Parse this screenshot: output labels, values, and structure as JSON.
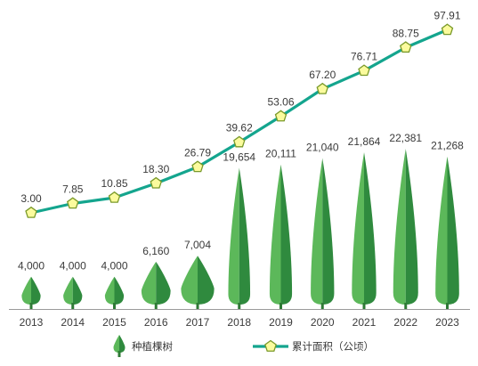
{
  "chart_data": {
    "type": "bar",
    "categories": [
      "2013",
      "2014",
      "2015",
      "2016",
      "2017",
      "2018",
      "2019",
      "2020",
      "2021",
      "2022",
      "2023"
    ],
    "series": [
      {
        "name": "种植棵树",
        "kind": "tree-bar",
        "values": [
          4000,
          4000,
          4000,
          6160,
          7004,
          19654,
          20111,
          21040,
          21864,
          22381,
          21268
        ],
        "labels": [
          "4,000",
          "4,000",
          "4,000",
          "6,160",
          "7,004",
          "19,654",
          "20,111",
          "21,040",
          "21,864",
          "22,381",
          "21,268"
        ]
      },
      {
        "name": "累计面积（公顷）",
        "kind": "line",
        "values": [
          3.0,
          7.85,
          10.85,
          18.3,
          26.79,
          39.62,
          53.06,
          67.2,
          76.71,
          88.75,
          97.91
        ],
        "labels": [
          "3.00",
          "7.85",
          "10.85",
          "18.30",
          "26.79",
          "39.62",
          "53.06",
          "67.20",
          "76.71",
          "88.75",
          "97.91"
        ]
      }
    ],
    "legend": {
      "trees": "种植棵树",
      "area": "累计面积（公顷）",
      "position": "bottom"
    },
    "colors": {
      "tree_light": "#5cb85a",
      "tree_dark": "#2f8a3e",
      "line": "#14a58e",
      "marker_fill": "#fbfb9d",
      "marker_stroke": "#7a9a2a",
      "axis": "#9a9a9a",
      "text": "#3a3a3a"
    }
  }
}
